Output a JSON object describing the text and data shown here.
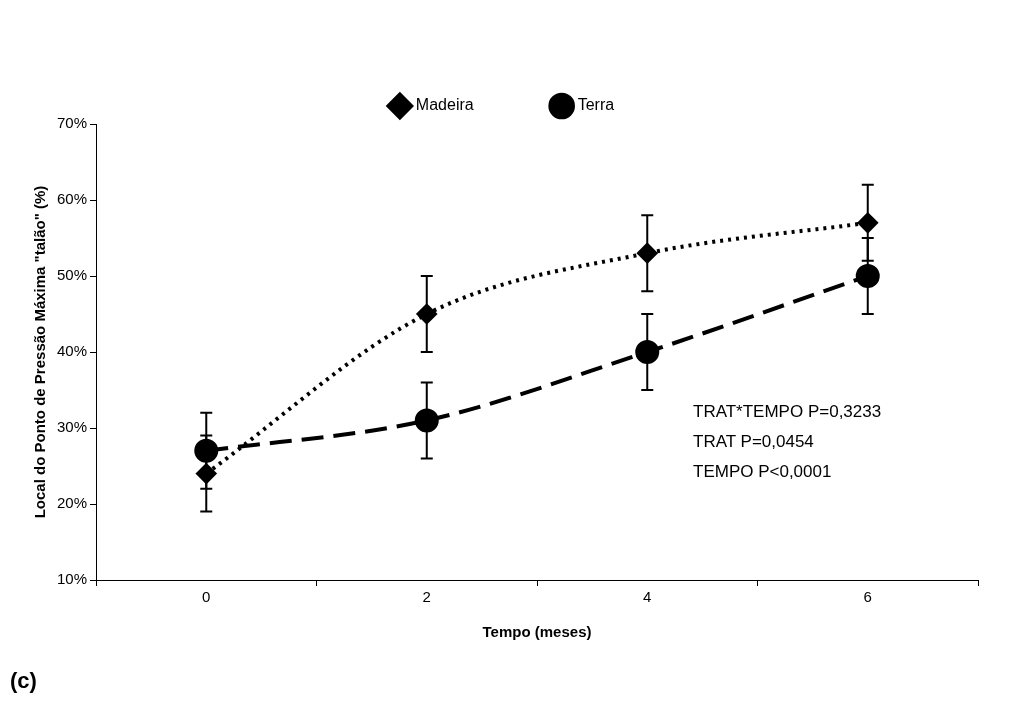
{
  "chart_data": {
    "type": "line",
    "xlabel": "Tempo (meses)",
    "ylabel": "Local do Ponto de Pressão Máxima \"talão\" (%)",
    "categories": [
      "0",
      "2",
      "4",
      "6"
    ],
    "series": [
      {
        "name": "Madeira",
        "color": "#000000",
        "values": [
          24,
          45,
          53,
          57
        ],
        "errors": [
          5,
          5,
          5,
          5
        ],
        "marker": "diamond",
        "line_style": "dotted"
      },
      {
        "name": "Terra",
        "color": "#000000",
        "values": [
          27,
          31,
          40,
          50
        ],
        "errors": [
          5,
          5,
          5,
          5
        ],
        "marker": "circle",
        "line_style": "dashed"
      }
    ],
    "ylim": [
      10,
      70
    ],
    "yticks": [
      {
        "value": 10,
        "label": "10%"
      },
      {
        "value": 20,
        "label": "20%"
      },
      {
        "value": 30,
        "label": "30%"
      },
      {
        "value": 40,
        "label": "40%"
      },
      {
        "value": 50,
        "label": "50%"
      },
      {
        "value": 60,
        "label": "60%"
      },
      {
        "value": 70,
        "label": "70%"
      }
    ],
    "grid": false,
    "legend": "top",
    "annotations": [
      "TRAT*TEMPO P=0,3233",
      "TRAT P=0,0454",
      "TEMPO P<0,0001",
      "(c)"
    ]
  }
}
